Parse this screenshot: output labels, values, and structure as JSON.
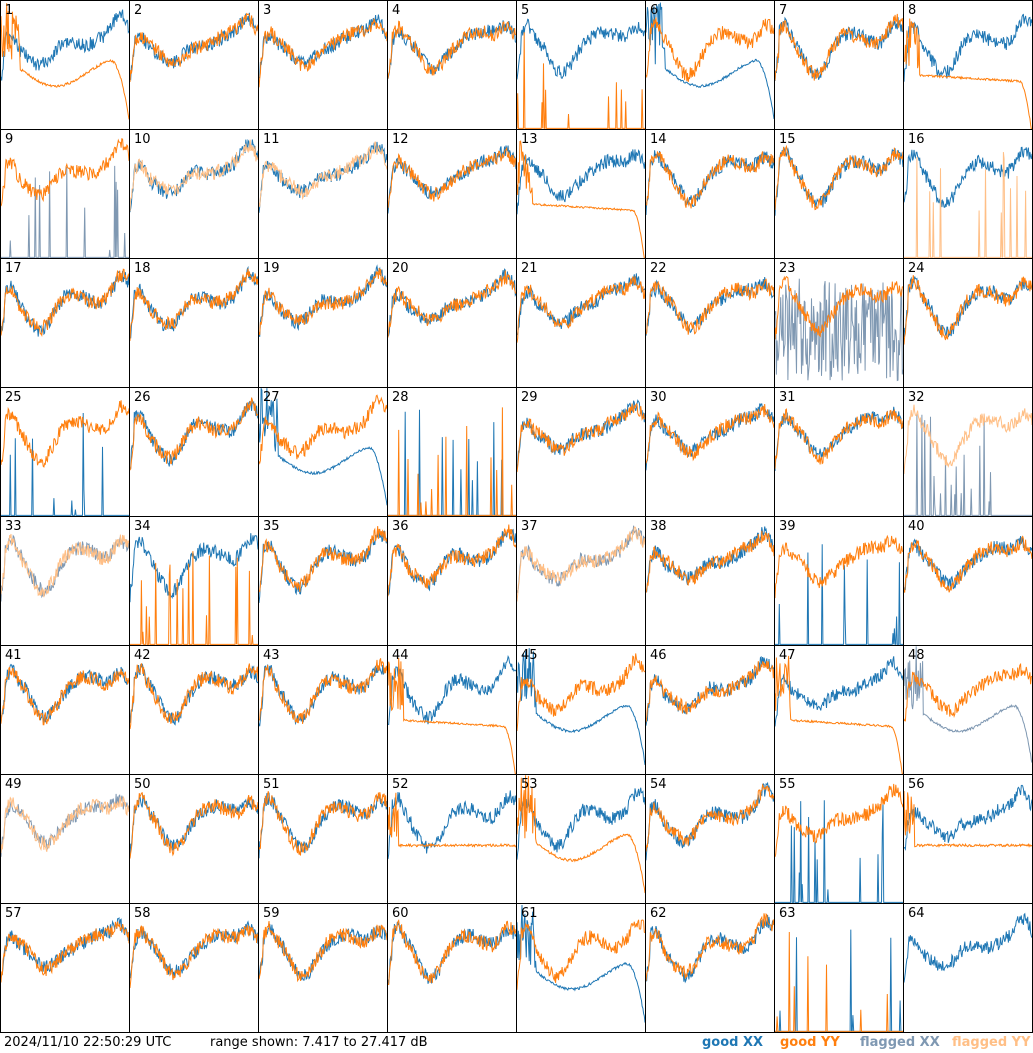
{
  "footer": {
    "timestamp": "2024/11/10 22:50:29 UTC",
    "range_text": "range shown: 7.417 to 27.417 dB"
  },
  "legend": {
    "good_xx": "good XX",
    "good_yy": "good YY",
    "flagged_xx": "flagged XX",
    "flagged_yy": "flagged YY"
  },
  "colors": {
    "good_xx": "#1f77b4",
    "good_yy": "#ff7f0e",
    "flagged_xx": "#7f98b2",
    "flagged_yy": "#ffbf86"
  },
  "chart_data": {
    "type": "line",
    "grid_layout": "8x8 small multiples",
    "ylim": [
      7.417,
      27.417
    ],
    "units": "dB",
    "panels": [
      {
        "id": "1",
        "xx": "good",
        "yy": "good",
        "xx_shape": "normal",
        "yy_shape": "dip_rolloff"
      },
      {
        "id": "2",
        "xx": "good",
        "yy": "good",
        "xx_shape": "normal",
        "yy_shape": "normal"
      },
      {
        "id": "3",
        "xx": "good",
        "yy": "good",
        "xx_shape": "normal",
        "yy_shape": "normal"
      },
      {
        "id": "4",
        "xx": "good",
        "yy": "good",
        "xx_shape": "normal",
        "yy_shape": "normal"
      },
      {
        "id": "5",
        "xx": "good",
        "yy": "good",
        "xx_shape": "normal",
        "yy_shape": "spiky"
      },
      {
        "id": "6",
        "xx": "good",
        "yy": "good",
        "xx_shape": "dip_rolloff",
        "yy_shape": "normal"
      },
      {
        "id": "7",
        "xx": "good",
        "yy": "good",
        "xx_shape": "normal",
        "yy_shape": "normal"
      },
      {
        "id": "8",
        "xx": "good",
        "yy": "good",
        "xx_shape": "normal",
        "yy_shape": "flat_rolloff"
      },
      {
        "id": "9",
        "xx": "flagged",
        "yy": "good",
        "xx_shape": "spiky",
        "yy_shape": "normal"
      },
      {
        "id": "10",
        "xx": "good",
        "yy": "flagged",
        "xx_shape": "normal",
        "yy_shape": "normal"
      },
      {
        "id": "11",
        "xx": "good",
        "yy": "flagged",
        "xx_shape": "normal",
        "yy_shape": "normal"
      },
      {
        "id": "12",
        "xx": "good",
        "yy": "good",
        "xx_shape": "normal",
        "yy_shape": "normal"
      },
      {
        "id": "13",
        "xx": "good",
        "yy": "good",
        "xx_shape": "normal",
        "yy_shape": "flat_rolloff"
      },
      {
        "id": "14",
        "xx": "good",
        "yy": "good",
        "xx_shape": "normal",
        "yy_shape": "normal"
      },
      {
        "id": "15",
        "xx": "good",
        "yy": "good",
        "xx_shape": "normal",
        "yy_shape": "normal"
      },
      {
        "id": "16",
        "xx": "good",
        "yy": "flagged",
        "xx_shape": "normal",
        "yy_shape": "spiky"
      },
      {
        "id": "17",
        "xx": "good",
        "yy": "good",
        "xx_shape": "normal",
        "yy_shape": "normal"
      },
      {
        "id": "18",
        "xx": "good",
        "yy": "good",
        "xx_shape": "normal",
        "yy_shape": "normal"
      },
      {
        "id": "19",
        "xx": "good",
        "yy": "good",
        "xx_shape": "normal",
        "yy_shape": "normal"
      },
      {
        "id": "20",
        "xx": "good",
        "yy": "good",
        "xx_shape": "normal",
        "yy_shape": "normal"
      },
      {
        "id": "21",
        "xx": "good",
        "yy": "good",
        "xx_shape": "normal",
        "yy_shape": "normal"
      },
      {
        "id": "22",
        "xx": "good",
        "yy": "good",
        "xx_shape": "normal",
        "yy_shape": "normal"
      },
      {
        "id": "23",
        "xx": "flagged",
        "yy": "good",
        "xx_shape": "noisy_low",
        "yy_shape": "normal"
      },
      {
        "id": "24",
        "xx": "good",
        "yy": "good",
        "xx_shape": "normal",
        "yy_shape": "normal"
      },
      {
        "id": "25",
        "xx": "good",
        "yy": "good",
        "xx_shape": "spiky",
        "yy_shape": "normal"
      },
      {
        "id": "26",
        "xx": "good",
        "yy": "good",
        "xx_shape": "normal",
        "yy_shape": "normal"
      },
      {
        "id": "27",
        "xx": "good",
        "yy": "good",
        "xx_shape": "dip_rolloff",
        "yy_shape": "normal"
      },
      {
        "id": "28",
        "xx": "good",
        "yy": "good",
        "xx_shape": "spiky",
        "yy_shape": "spiky"
      },
      {
        "id": "29",
        "xx": "good",
        "yy": "good",
        "xx_shape": "normal",
        "yy_shape": "normal"
      },
      {
        "id": "30",
        "xx": "good",
        "yy": "good",
        "xx_shape": "normal",
        "yy_shape": "normal"
      },
      {
        "id": "31",
        "xx": "good",
        "yy": "good",
        "xx_shape": "normal",
        "yy_shape": "normal"
      },
      {
        "id": "32",
        "xx": "flagged",
        "yy": "flagged",
        "xx_shape": "spiky",
        "yy_shape": "normal"
      },
      {
        "id": "33",
        "xx": "flagged",
        "yy": "flagged",
        "xx_shape": "normal",
        "yy_shape": "normal"
      },
      {
        "id": "34",
        "xx": "good",
        "yy": "good",
        "xx_shape": "normal",
        "yy_shape": "spiky"
      },
      {
        "id": "35",
        "xx": "good",
        "yy": "good",
        "xx_shape": "normal",
        "yy_shape": "normal"
      },
      {
        "id": "36",
        "xx": "good",
        "yy": "good",
        "xx_shape": "normal",
        "yy_shape": "normal"
      },
      {
        "id": "37",
        "xx": "flagged",
        "yy": "flagged",
        "xx_shape": "normal",
        "yy_shape": "normal"
      },
      {
        "id": "38",
        "xx": "good",
        "yy": "good",
        "xx_shape": "normal",
        "yy_shape": "normal"
      },
      {
        "id": "39",
        "xx": "good",
        "yy": "good",
        "xx_shape": "spiky",
        "yy_shape": "normal"
      },
      {
        "id": "40",
        "xx": "good",
        "yy": "good",
        "xx_shape": "normal",
        "yy_shape": "normal"
      },
      {
        "id": "41",
        "xx": "good",
        "yy": "good",
        "xx_shape": "normal",
        "yy_shape": "normal"
      },
      {
        "id": "42",
        "xx": "good",
        "yy": "good",
        "xx_shape": "normal",
        "yy_shape": "normal"
      },
      {
        "id": "43",
        "xx": "good",
        "yy": "good",
        "xx_shape": "normal",
        "yy_shape": "normal"
      },
      {
        "id": "44",
        "xx": "good",
        "yy": "good",
        "xx_shape": "normal",
        "yy_shape": "flat_rolloff"
      },
      {
        "id": "45",
        "xx": "good",
        "yy": "good",
        "xx_shape": "dip_rolloff",
        "yy_shape": "normal"
      },
      {
        "id": "46",
        "xx": "good",
        "yy": "good",
        "xx_shape": "normal",
        "yy_shape": "normal"
      },
      {
        "id": "47",
        "xx": "good",
        "yy": "good",
        "xx_shape": "normal",
        "yy_shape": "flat_rolloff"
      },
      {
        "id": "48",
        "xx": "flagged",
        "yy": "good",
        "xx_shape": "dip_rolloff",
        "yy_shape": "normal"
      },
      {
        "id": "49",
        "xx": "flagged",
        "yy": "flagged",
        "xx_shape": "normal",
        "yy_shape": "normal"
      },
      {
        "id": "50",
        "xx": "good",
        "yy": "good",
        "xx_shape": "normal",
        "yy_shape": "normal"
      },
      {
        "id": "51",
        "xx": "good",
        "yy": "good",
        "xx_shape": "normal",
        "yy_shape": "normal"
      },
      {
        "id": "52",
        "xx": "good",
        "yy": "good",
        "xx_shape": "normal",
        "yy_shape": "flat"
      },
      {
        "id": "53",
        "xx": "good",
        "yy": "good",
        "xx_shape": "normal",
        "yy_shape": "dip_rolloff"
      },
      {
        "id": "54",
        "xx": "good",
        "yy": "good",
        "xx_shape": "normal",
        "yy_shape": "normal"
      },
      {
        "id": "55",
        "xx": "good",
        "yy": "good",
        "xx_shape": "spiky",
        "yy_shape": "normal"
      },
      {
        "id": "56",
        "xx": "good",
        "yy": "good",
        "xx_shape": "normal",
        "yy_shape": "flat"
      },
      {
        "id": "57",
        "xx": "good",
        "yy": "good",
        "xx_shape": "normal",
        "yy_shape": "normal"
      },
      {
        "id": "58",
        "xx": "good",
        "yy": "good",
        "xx_shape": "normal",
        "yy_shape": "normal"
      },
      {
        "id": "59",
        "xx": "good",
        "yy": "good",
        "xx_shape": "normal",
        "yy_shape": "normal"
      },
      {
        "id": "60",
        "xx": "good",
        "yy": "good",
        "xx_shape": "normal",
        "yy_shape": "normal"
      },
      {
        "id": "61",
        "xx": "good",
        "yy": "good",
        "xx_shape": "dip_rolloff",
        "yy_shape": "normal"
      },
      {
        "id": "62",
        "xx": "good",
        "yy": "good",
        "xx_shape": "normal",
        "yy_shape": "normal"
      },
      {
        "id": "63",
        "xx": "good",
        "yy": "good",
        "xx_shape": "spiky",
        "yy_shape": "spiky"
      },
      {
        "id": "64",
        "xx": "good",
        "yy": "good",
        "xx_shape": "normal",
        "yy_shape": "none"
      }
    ]
  }
}
